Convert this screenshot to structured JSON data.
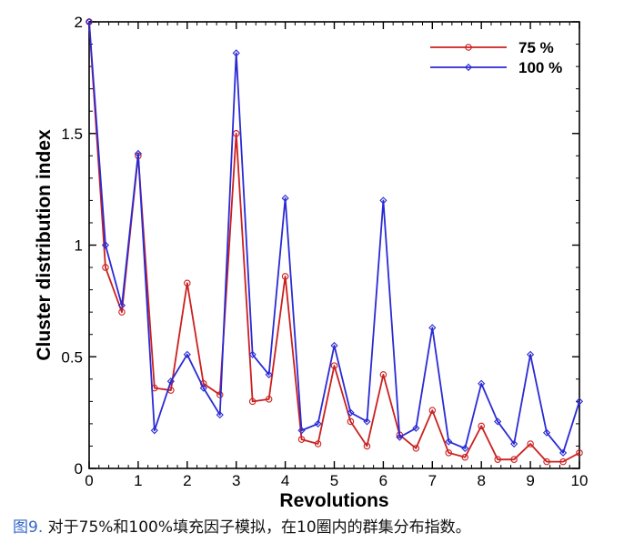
{
  "chart_data": {
    "type": "line",
    "xlabel": "Revolutions",
    "ylabel": "Cluster distribution index",
    "xlim": [
      0,
      10
    ],
    "ylim": [
      0,
      2
    ],
    "xticks": [
      "0",
      "1",
      "2",
      "3",
      "4",
      "5",
      "6",
      "7",
      "8",
      "9",
      "10"
    ],
    "yticks": [
      "0",
      "0.5",
      "1",
      "1.5",
      "2"
    ],
    "grid": false,
    "legend": "top-right",
    "x": [
      0,
      0.333,
      0.667,
      1,
      1.333,
      1.667,
      2,
      2.333,
      2.667,
      3,
      3.333,
      3.667,
      4,
      4.333,
      4.667,
      5,
      5.333,
      5.667,
      6,
      6.333,
      6.667,
      7,
      7.333,
      7.667,
      8,
      8.333,
      8.667,
      9,
      9.333,
      9.667,
      10
    ],
    "series": [
      {
        "name": "75 %",
        "color": "#cc1f1f",
        "marker": "circle",
        "values": [
          2.0,
          0.9,
          0.7,
          1.4,
          0.36,
          0.35,
          0.83,
          0.38,
          0.33,
          1.5,
          0.3,
          0.31,
          0.86,
          0.13,
          0.11,
          0.46,
          0.21,
          0.1,
          0.42,
          0.15,
          0.09,
          0.26,
          0.07,
          0.05,
          0.19,
          0.04,
          0.04,
          0.11,
          0.03,
          0.03,
          0.07
        ]
      },
      {
        "name": "100 %",
        "color": "#2a2ad4",
        "marker": "diamond",
        "values": [
          2.0,
          1.0,
          0.73,
          1.41,
          0.17,
          0.39,
          0.51,
          0.36,
          0.24,
          1.86,
          0.51,
          0.42,
          1.21,
          0.17,
          0.2,
          0.55,
          0.25,
          0.21,
          1.2,
          0.14,
          0.18,
          0.63,
          0.12,
          0.09,
          0.38,
          0.21,
          0.11,
          0.51,
          0.16,
          0.07,
          0.3
        ]
      }
    ]
  },
  "caption": {
    "fig_ref": "图9.",
    "text": " 对于75%和100%填充因子模拟，在10圈内的群集分布指数。"
  }
}
